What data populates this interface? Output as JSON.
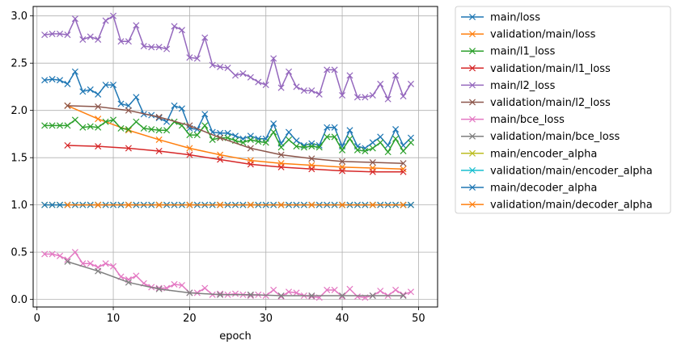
{
  "chart_data": {
    "type": "line",
    "xlabel": "epoch",
    "ylabel": "",
    "xlim": [
      -0.5,
      52.5
    ],
    "ylim": [
      -0.08,
      3.1
    ],
    "xticks": [
      0,
      10,
      20,
      30,
      40,
      50
    ],
    "yticks": [
      0.0,
      0.5,
      1.0,
      1.5,
      2.0,
      2.5,
      3.0
    ],
    "xtick_labels": [
      "0",
      "10",
      "20",
      "30",
      "40",
      "50"
    ],
    "ytick_labels": [
      "0.0",
      "0.5",
      "1.0",
      "1.5",
      "2.0",
      "2.5",
      "3.0"
    ],
    "grid": true,
    "legend_position": "outside-right",
    "series": [
      {
        "name": "main/loss",
        "color": "#1f77b4",
        "x": [
          1,
          2,
          3,
          4,
          5,
          6,
          7,
          8,
          9,
          10,
          11,
          12,
          13,
          14,
          15,
          16,
          17,
          18,
          19,
          20,
          21,
          22,
          23,
          24,
          25,
          26,
          27,
          28,
          29,
          30,
          31,
          32,
          33,
          34,
          35,
          36,
          37,
          38,
          39,
          40,
          41,
          42,
          43,
          44,
          45,
          46,
          47,
          48,
          49
        ],
        "y": [
          2.32,
          2.33,
          2.32,
          2.28,
          2.41,
          2.2,
          2.22,
          2.17,
          2.27,
          2.27,
          2.07,
          2.05,
          2.14,
          1.96,
          1.95,
          1.92,
          1.88,
          2.05,
          2.02,
          1.81,
          1.8,
          1.96,
          1.77,
          1.76,
          1.76,
          1.73,
          1.7,
          1.73,
          1.7,
          1.7,
          1.86,
          1.65,
          1.77,
          1.68,
          1.63,
          1.65,
          1.63,
          1.82,
          1.82,
          1.62,
          1.79,
          1.62,
          1.6,
          1.66,
          1.72,
          1.63,
          1.8,
          1.63,
          1.71
        ]
      },
      {
        "name": "validation/main/loss",
        "color": "#ff7f0e",
        "x": [
          4,
          8,
          12,
          16,
          20,
          24,
          28,
          32,
          36,
          40,
          44,
          48
        ],
        "y": [
          2.05,
          1.91,
          1.79,
          1.69,
          1.6,
          1.53,
          1.47,
          1.44,
          1.42,
          1.4,
          1.39,
          1.38
        ]
      },
      {
        "name": "main/l1_loss",
        "color": "#2ca02c",
        "x": [
          1,
          2,
          3,
          4,
          5,
          6,
          7,
          8,
          9,
          10,
          11,
          12,
          13,
          14,
          15,
          16,
          17,
          18,
          19,
          20,
          21,
          22,
          23,
          24,
          25,
          26,
          27,
          28,
          29,
          30,
          31,
          32,
          33,
          34,
          35,
          36,
          37,
          38,
          39,
          40,
          41,
          42,
          43,
          44,
          45,
          46,
          47,
          48,
          49
        ],
        "y": [
          1.84,
          1.84,
          1.84,
          1.84,
          1.9,
          1.82,
          1.83,
          1.82,
          1.88,
          1.9,
          1.81,
          1.8,
          1.88,
          1.81,
          1.8,
          1.79,
          1.79,
          1.88,
          1.84,
          1.74,
          1.74,
          1.84,
          1.69,
          1.71,
          1.71,
          1.68,
          1.66,
          1.69,
          1.67,
          1.66,
          1.77,
          1.61,
          1.69,
          1.62,
          1.61,
          1.62,
          1.61,
          1.72,
          1.72,
          1.58,
          1.7,
          1.58,
          1.57,
          1.6,
          1.66,
          1.56,
          1.7,
          1.57,
          1.66
        ]
      },
      {
        "name": "validation/main/l1_loss",
        "color": "#d62728",
        "x": [
          4,
          8,
          12,
          16,
          20,
          24,
          28,
          32,
          36,
          40,
          44,
          48
        ],
        "y": [
          1.63,
          1.62,
          1.6,
          1.57,
          1.53,
          1.48,
          1.43,
          1.4,
          1.38,
          1.36,
          1.35,
          1.35
        ]
      },
      {
        "name": "main/l2_loss",
        "color": "#9467bd",
        "x": [
          1,
          2,
          3,
          4,
          5,
          6,
          7,
          8,
          9,
          10,
          11,
          12,
          13,
          14,
          15,
          16,
          17,
          18,
          19,
          20,
          21,
          22,
          23,
          24,
          25,
          26,
          27,
          28,
          29,
          30,
          31,
          32,
          33,
          34,
          35,
          36,
          37,
          38,
          39,
          40,
          41,
          42,
          43,
          44,
          45,
          46,
          47,
          48,
          49
        ],
        "y": [
          2.8,
          2.81,
          2.81,
          2.8,
          2.97,
          2.75,
          2.78,
          2.75,
          2.95,
          3.0,
          2.73,
          2.73,
          2.9,
          2.68,
          2.67,
          2.67,
          2.65,
          2.89,
          2.85,
          2.56,
          2.55,
          2.77,
          2.48,
          2.46,
          2.45,
          2.37,
          2.39,
          2.35,
          2.3,
          2.27,
          2.55,
          2.24,
          2.41,
          2.25,
          2.21,
          2.21,
          2.17,
          2.43,
          2.43,
          2.16,
          2.37,
          2.14,
          2.14,
          2.16,
          2.28,
          2.12,
          2.37,
          2.15,
          2.28
        ]
      },
      {
        "name": "validation/main/l2_loss",
        "color": "#8c564b",
        "x": [
          4,
          8,
          12,
          16,
          20,
          24,
          28,
          32,
          36,
          40,
          44,
          48
        ],
        "y": [
          2.05,
          2.04,
          2.0,
          1.93,
          1.84,
          1.71,
          1.6,
          1.53,
          1.49,
          1.46,
          1.45,
          1.44
        ]
      },
      {
        "name": "main/bce_loss",
        "color": "#e377c2",
        "x": [
          1,
          2,
          3,
          4,
          5,
          6,
          7,
          8,
          9,
          10,
          11,
          12,
          13,
          14,
          15,
          16,
          17,
          18,
          19,
          20,
          21,
          22,
          23,
          24,
          25,
          26,
          27,
          28,
          29,
          30,
          31,
          32,
          33,
          34,
          35,
          36,
          37,
          38,
          39,
          40,
          41,
          42,
          43,
          44,
          45,
          46,
          47,
          48,
          49
        ],
        "y": [
          0.48,
          0.48,
          0.46,
          0.42,
          0.5,
          0.38,
          0.38,
          0.34,
          0.38,
          0.35,
          0.24,
          0.21,
          0.25,
          0.17,
          0.13,
          0.12,
          0.12,
          0.16,
          0.15,
          0.07,
          0.07,
          0.12,
          0.05,
          0.06,
          0.05,
          0.06,
          0.05,
          0.04,
          0.05,
          0.04,
          0.1,
          0.03,
          0.08,
          0.07,
          0.04,
          0.03,
          0.02,
          0.1,
          0.1,
          0.03,
          0.11,
          0.03,
          0.02,
          0.04,
          0.09,
          0.04,
          0.1,
          0.05,
          0.08
        ]
      },
      {
        "name": "validation/main/bce_loss",
        "color": "#7f7f7f",
        "x": [
          4,
          8,
          12,
          16,
          20,
          24,
          28,
          32,
          36,
          40,
          44,
          48
        ],
        "y": [
          0.4,
          0.3,
          0.18,
          0.11,
          0.07,
          0.05,
          0.05,
          0.04,
          0.04,
          0.04,
          0.04,
          0.04
        ]
      },
      {
        "name": "main/encoder_alpha",
        "color": "#bcbd22",
        "x": [
          1,
          2,
          3,
          4,
          5,
          6,
          7,
          8,
          9,
          10,
          11,
          12,
          13,
          14,
          15,
          16,
          17,
          18,
          19,
          20,
          21,
          22,
          23,
          24,
          25,
          26,
          27,
          28,
          29,
          30,
          31,
          32,
          33,
          34,
          35,
          36,
          37,
          38,
          39,
          40,
          41,
          42,
          43,
          44,
          45,
          46,
          47,
          48,
          49
        ],
        "y": [
          1,
          1,
          1,
          1,
          1,
          1,
          1,
          1,
          1,
          1,
          1,
          1,
          1,
          1,
          1,
          1,
          1,
          1,
          1,
          1,
          1,
          1,
          1,
          1,
          1,
          1,
          1,
          1,
          1,
          1,
          1,
          1,
          1,
          1,
          1,
          1,
          1,
          1,
          1,
          1,
          1,
          1,
          1,
          1,
          1,
          1,
          1,
          1,
          1
        ]
      },
      {
        "name": "validation/main/encoder_alpha",
        "color": "#17becf",
        "x": [
          4,
          8,
          12,
          16,
          20,
          24,
          28,
          32,
          36,
          40,
          44,
          48
        ],
        "y": [
          1,
          1,
          1,
          1,
          1,
          1,
          1,
          1,
          1,
          1,
          1,
          1
        ]
      },
      {
        "name": "main/decoder_alpha",
        "color": "#1f77b4",
        "x": [
          1,
          2,
          3,
          4,
          5,
          6,
          7,
          8,
          9,
          10,
          11,
          12,
          13,
          14,
          15,
          16,
          17,
          18,
          19,
          20,
          21,
          22,
          23,
          24,
          25,
          26,
          27,
          28,
          29,
          30,
          31,
          32,
          33,
          34,
          35,
          36,
          37,
          38,
          39,
          40,
          41,
          42,
          43,
          44,
          45,
          46,
          47,
          48,
          49
        ],
        "y": [
          1,
          1,
          1,
          1,
          1,
          1,
          1,
          1,
          1,
          1,
          1,
          1,
          1,
          1,
          1,
          1,
          1,
          1,
          1,
          1,
          1,
          1,
          1,
          1,
          1,
          1,
          1,
          1,
          1,
          1,
          1,
          1,
          1,
          1,
          1,
          1,
          1,
          1,
          1,
          1,
          1,
          1,
          1,
          1,
          1,
          1,
          1,
          1,
          1
        ]
      },
      {
        "name": "validation/main/decoder_alpha",
        "color": "#ff7f0e",
        "x": [
          4,
          8,
          12,
          16,
          20,
          24,
          28,
          32,
          36,
          40,
          44,
          48
        ],
        "y": [
          1,
          1,
          1,
          1,
          1,
          1,
          1,
          1,
          1,
          1,
          1,
          1
        ]
      }
    ]
  }
}
